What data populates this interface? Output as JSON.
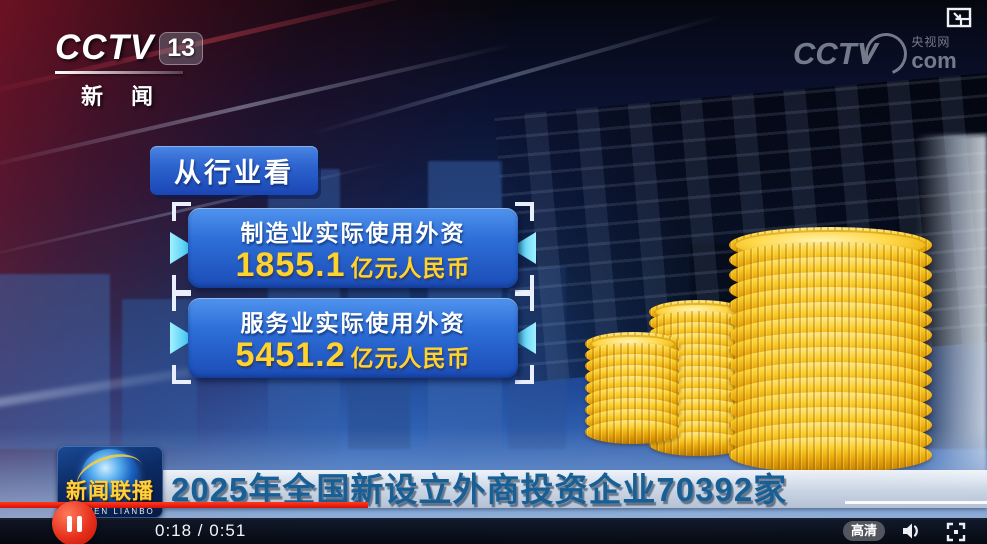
{
  "channel": {
    "brand": "CCTV",
    "number": "13",
    "name": "新闻"
  },
  "watermark": {
    "brand": "CCTV",
    "site": "央视网",
    "domain": "com"
  },
  "infographic": {
    "section_label": "从行业看",
    "stats": [
      {
        "label": "制造业实际使用外资",
        "value": "1855.1",
        "unit": "亿元人民币"
      },
      {
        "label": "服务业实际使用外资",
        "value": "5451.2",
        "unit": "亿元人民币"
      }
    ],
    "coin_stacks": [
      {
        "coins": 9
      },
      {
        "coins": 13
      },
      {
        "coins": 15
      }
    ]
  },
  "lower_third": {
    "program_title": "新闻联播",
    "program_subtitle": "XINWEN LIANBO",
    "headline": "2025年全国新设立外商投资企业70392家"
  },
  "player": {
    "time_display": "0:18 / 0:51",
    "quality_label": "高清",
    "icons": {
      "pause": "pause-icon",
      "volume": "volume-icon",
      "fullscreen": "fullscreen-icon",
      "pip": "picture-in-picture-icon"
    }
  },
  "colors": {
    "accent_blue": "#2e6fd8",
    "accent_yellow": "#ffd22e",
    "accent_cyan": "#1fb4ec",
    "accent_red": "#e8150a",
    "headline_blue": "#175f95",
    "coin_gold": "#f5c518"
  }
}
